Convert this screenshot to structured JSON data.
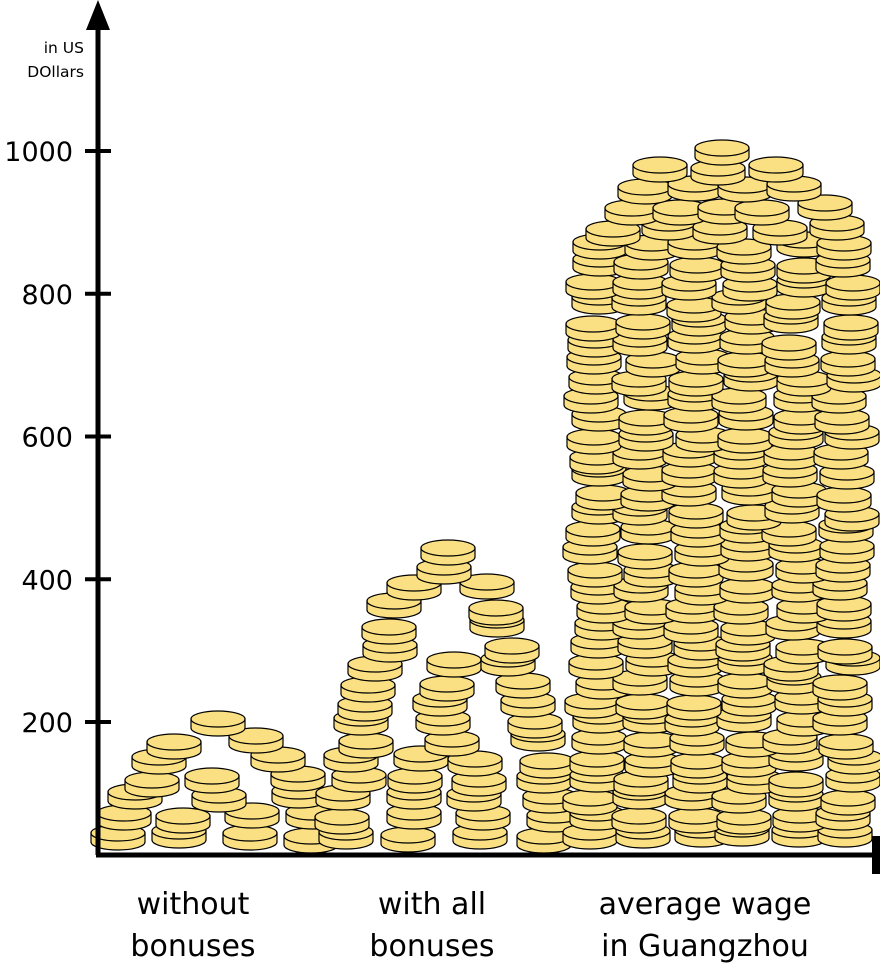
{
  "chart_data": {
    "type": "bar",
    "title": "",
    "ylabel_lines": [
      "in US",
      "DOllars"
    ],
    "ylim": [
      0,
      1100
    ],
    "yticks": [
      200,
      400,
      600,
      800,
      1000
    ],
    "categories": [
      [
        "without",
        "bonuses"
      ],
      [
        "with all",
        "bonuses"
      ],
      [
        "average wage",
        "in Guangzhou"
      ]
    ],
    "values": [
      210,
      450,
      1010
    ],
    "bar_style": "stacked gold coins",
    "colors": {
      "coin_fill": "#fbe083",
      "coin_stroke": "#000000",
      "axis": "#000000"
    }
  }
}
